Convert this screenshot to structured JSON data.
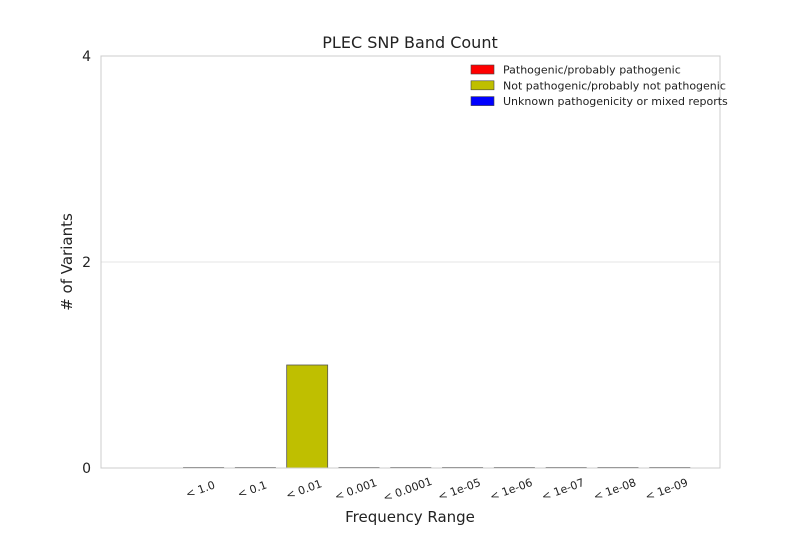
{
  "chart_data": {
    "type": "bar",
    "title": "PLEC SNP Band Count",
    "xlabel": "Frequency Range",
    "ylabel": "# of Variants",
    "categories": [
      "< 1.0",
      "< 0.1",
      "< 0.01",
      "< 0.001",
      "< 0.0001",
      "< 1e-05",
      "< 1e-06",
      "< 1e-07",
      "< 1e-08",
      "< 1e-09"
    ],
    "ylim": [
      0,
      4
    ],
    "yticks": [
      0,
      2,
      4
    ],
    "grid": true,
    "legend_position": "top-right",
    "stacked": true,
    "series": [
      {
        "name": "Pathogenic/probably pathogenic",
        "color": "#ff0000",
        "values": [
          0,
          0,
          0,
          0,
          0,
          0,
          0,
          0,
          0,
          0
        ]
      },
      {
        "name": "Not pathogenic/probably not pathogenic",
        "color": "#bfbf00",
        "values": [
          0,
          0,
          1,
          0,
          0,
          0,
          0,
          0,
          0,
          0
        ]
      },
      {
        "name": "Unknown pathogenicity or mixed reports",
        "color": "#0000ff",
        "values": [
          0,
          0,
          0,
          0,
          0,
          0,
          0,
          0,
          0,
          0
        ]
      }
    ]
  }
}
